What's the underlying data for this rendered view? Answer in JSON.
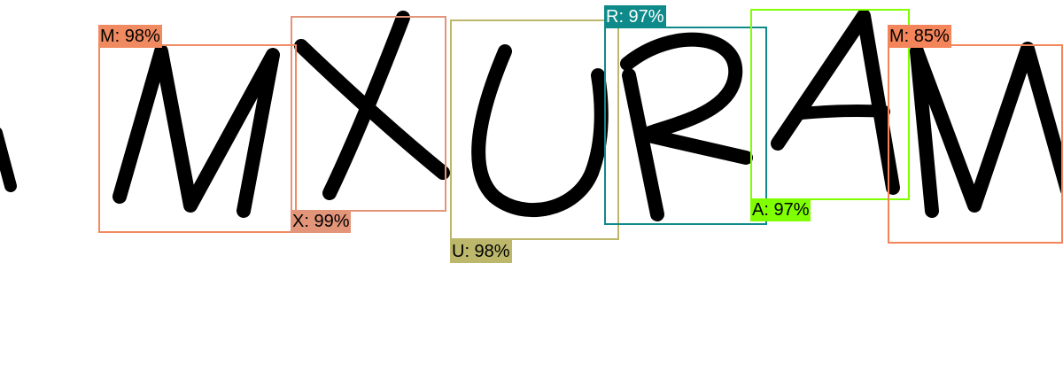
{
  "detections": [
    {
      "id": "m1",
      "label": "M: 98%",
      "color": "#f08a60"
    },
    {
      "id": "x",
      "label": "X: 99%",
      "color": "#e3957a"
    },
    {
      "id": "u",
      "label": "U: 98%",
      "color": "#bdb76b"
    },
    {
      "id": "r",
      "label": "R: 97%",
      "color": "#0f8a8a"
    },
    {
      "id": "a",
      "label": "A: 97%",
      "color": "#7fff00"
    },
    {
      "id": "m2",
      "label": "M: 85%",
      "color": "#f4845a"
    }
  ]
}
